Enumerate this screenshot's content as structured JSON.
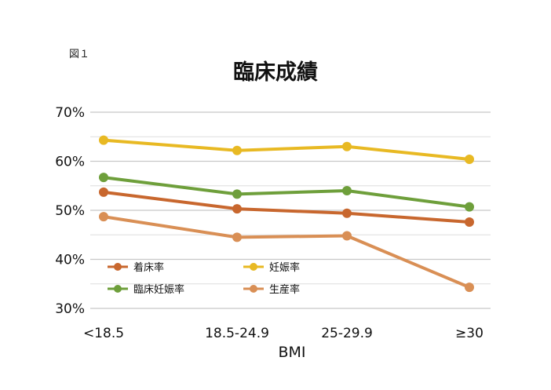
{
  "figure_label": "図１",
  "chart_data": {
    "type": "line",
    "title": "臨床成績",
    "xlabel": "BMI",
    "ylabel": "",
    "categories": [
      "<18.5",
      "18.5-24.9",
      "25-29.9",
      "≥30"
    ],
    "y_ticks": [
      "30%",
      "40%",
      "50%",
      "60%",
      "70%"
    ],
    "ylim": [
      30,
      70
    ],
    "grid": true,
    "legend_position": "lower-left",
    "series": [
      {
        "name": "妊娠率",
        "color": "#E8B923",
        "values": [
          64.3,
          62.2,
          63.0,
          60.4
        ]
      },
      {
        "name": "臨床妊娠率",
        "color": "#6E9F3B",
        "values": [
          56.7,
          53.3,
          54.0,
          50.7
        ]
      },
      {
        "name": "着床率",
        "color": "#C8672E",
        "values": [
          53.7,
          50.3,
          49.4,
          47.6
        ]
      },
      {
        "name": "生産率",
        "color": "#D98F55",
        "values": [
          48.7,
          44.5,
          44.8,
          34.3
        ]
      }
    ]
  }
}
